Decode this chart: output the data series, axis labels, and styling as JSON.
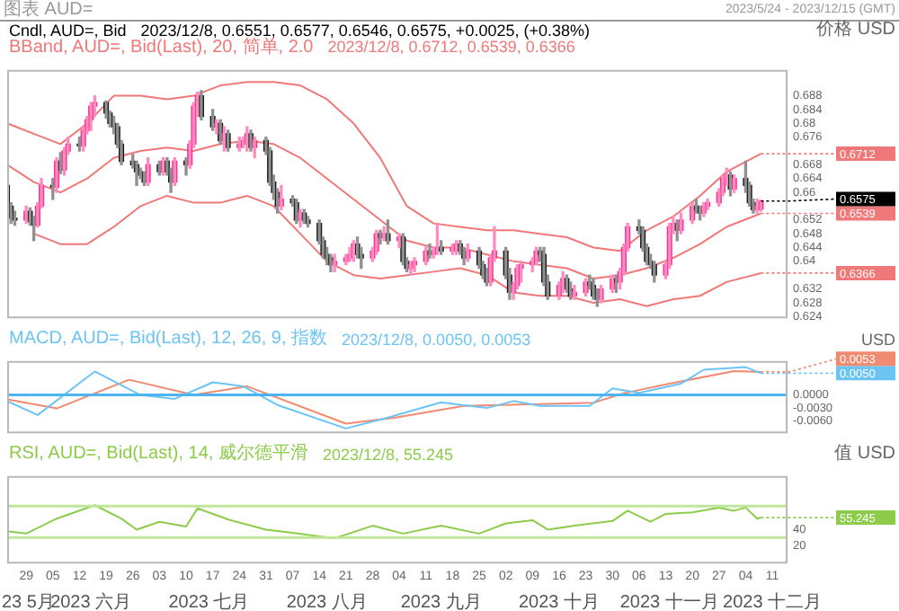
{
  "chart_data": [
    {
      "type": "candlestick",
      "title": "Cndl, AUD=, Bid",
      "subtitle": "2023/12/8, 0.6551, 0.6577, 0.6546, 0.6575, +0.0025, (+0.38%)",
      "ylabel": "价格 USD",
      "x": [
        "2023-05-24",
        "2023-05-25",
        "2023-05-26",
        "2023-05-29",
        "2023-05-30",
        "2023-05-31",
        "2023-06-01",
        "2023-06-02",
        "2023-06-05",
        "2023-06-06",
        "2023-06-07",
        "2023-06-08",
        "2023-06-09",
        "2023-06-12",
        "2023-06-13",
        "2023-06-14",
        "2023-06-15",
        "2023-06-16",
        "2023-06-19",
        "2023-06-20",
        "2023-06-21",
        "2023-06-22",
        "2023-06-23",
        "2023-06-26",
        "2023-06-27",
        "2023-06-28",
        "2023-06-29",
        "2023-06-30",
        "2023-07-03",
        "2023-07-04",
        "2023-07-05",
        "2023-07-06",
        "2023-07-07",
        "2023-07-10",
        "2023-07-11",
        "2023-07-12",
        "2023-07-13",
        "2023-07-14",
        "2023-07-17",
        "2023-07-18",
        "2023-07-19",
        "2023-07-20",
        "2023-07-21",
        "2023-07-24",
        "2023-07-25",
        "2023-07-26",
        "2023-07-27",
        "2023-07-28",
        "2023-07-31",
        "2023-08-01",
        "2023-08-02",
        "2023-08-03",
        "2023-08-04",
        "2023-08-07",
        "2023-08-08",
        "2023-08-09",
        "2023-08-10",
        "2023-08-11",
        "2023-08-14",
        "2023-08-15",
        "2023-08-16",
        "2023-08-17",
        "2023-08-18",
        "2023-08-21",
        "2023-08-22",
        "2023-08-23",
        "2023-08-24",
        "2023-08-25",
        "2023-08-28",
        "2023-08-29",
        "2023-08-30",
        "2023-08-31",
        "2023-09-01",
        "2023-09-04",
        "2023-09-05",
        "2023-09-06",
        "2023-09-07",
        "2023-09-08",
        "2023-09-11",
        "2023-09-12",
        "2023-09-13",
        "2023-09-14",
        "2023-09-15",
        "2023-09-18",
        "2023-09-19",
        "2023-09-20",
        "2023-09-21",
        "2023-09-22",
        "2023-09-25",
        "2023-09-26",
        "2023-09-27",
        "2023-09-28",
        "2023-09-29",
        "2023-10-02",
        "2023-10-03",
        "2023-10-04",
        "2023-10-05",
        "2023-10-06",
        "2023-10-09",
        "2023-10-10",
        "2023-10-11",
        "2023-10-12",
        "2023-10-13",
        "2023-10-16",
        "2023-10-17",
        "2023-10-18",
        "2023-10-19",
        "2023-10-20",
        "2023-10-23",
        "2023-10-24",
        "2023-10-25",
        "2023-10-26",
        "2023-10-27",
        "2023-10-30",
        "2023-10-31",
        "2023-11-01",
        "2023-11-02",
        "2023-11-03",
        "2023-11-06",
        "2023-11-07",
        "2023-11-08",
        "2023-11-09",
        "2023-11-10",
        "2023-11-13",
        "2023-11-14",
        "2023-11-15",
        "2023-11-16",
        "2023-11-17",
        "2023-11-20",
        "2023-11-21",
        "2023-11-22",
        "2023-11-23",
        "2023-11-24",
        "2023-11-27",
        "2023-11-28",
        "2023-11-29",
        "2023-11-30",
        "2023-12-01",
        "2023-12-04",
        "2023-12-05",
        "2023-12-06",
        "2023-12-07",
        "2023-12-08"
      ],
      "ohlc": [
        [
          0.662,
          0.6625,
          0.6555,
          0.656
        ],
        [
          0.656,
          0.657,
          0.651,
          0.6525
        ],
        [
          0.6525,
          0.6545,
          0.6505,
          0.652
        ],
        [
          0.652,
          0.656,
          0.651,
          0.6545
        ],
        [
          0.6545,
          0.6555,
          0.6505,
          0.6515
        ],
        [
          0.6515,
          0.653,
          0.646,
          0.6505
        ],
        [
          0.6505,
          0.657,
          0.65,
          0.656
        ],
        [
          0.656,
          0.664,
          0.6555,
          0.662
        ],
        [
          0.662,
          0.664,
          0.658,
          0.6615
        ],
        [
          0.6615,
          0.67,
          0.66,
          0.669
        ],
        [
          0.669,
          0.6715,
          0.6655,
          0.6665
        ],
        [
          0.6665,
          0.673,
          0.665,
          0.672
        ],
        [
          0.672,
          0.676,
          0.671,
          0.674
        ],
        [
          0.674,
          0.676,
          0.672,
          0.6735
        ],
        [
          0.6735,
          0.679,
          0.672,
          0.678
        ],
        [
          0.678,
          0.682,
          0.677,
          0.681
        ],
        [
          0.681,
          0.686,
          0.678,
          0.685
        ],
        [
          0.685,
          0.688,
          0.682,
          0.686
        ],
        [
          0.686,
          0.6865,
          0.6815,
          0.683
        ],
        [
          0.683,
          0.6835,
          0.679,
          0.68
        ],
        [
          0.68,
          0.682,
          0.677,
          0.679
        ],
        [
          0.679,
          0.68,
          0.673,
          0.674
        ],
        [
          0.674,
          0.675,
          0.668,
          0.669
        ],
        [
          0.669,
          0.671,
          0.667,
          0.668
        ],
        [
          0.668,
          0.669,
          0.662,
          0.666
        ],
        [
          0.666,
          0.667,
          0.664,
          0.665
        ],
        [
          0.665,
          0.666,
          0.662,
          0.663
        ],
        [
          0.663,
          0.67,
          0.662,
          0.668
        ],
        [
          0.668,
          0.669,
          0.665,
          0.666
        ],
        [
          0.666,
          0.67,
          0.665,
          0.669
        ],
        [
          0.669,
          0.67,
          0.665,
          0.666
        ],
        [
          0.666,
          0.667,
          0.66,
          0.663
        ],
        [
          0.663,
          0.67,
          0.662,
          0.669
        ],
        [
          0.669,
          0.67,
          0.665,
          0.668
        ],
        [
          0.668,
          0.675,
          0.667,
          0.674
        ],
        [
          0.674,
          0.686,
          0.673,
          0.685
        ],
        [
          0.685,
          0.689,
          0.682,
          0.688
        ],
        [
          0.688,
          0.6895,
          0.681,
          0.682
        ],
        [
          0.682,
          0.684,
          0.678,
          0.679
        ],
        [
          0.679,
          0.681,
          0.677,
          0.68
        ],
        [
          0.68,
          0.681,
          0.674,
          0.675
        ],
        [
          0.675,
          0.679,
          0.672,
          0.677
        ],
        [
          0.677,
          0.678,
          0.672,
          0.673
        ],
        [
          0.673,
          0.676,
          0.672,
          0.674
        ],
        [
          0.674,
          0.676,
          0.673,
          0.675
        ],
        [
          0.675,
          0.679,
          0.672,
          0.677
        ],
        [
          0.677,
          0.678,
          0.672,
          0.673
        ],
        [
          0.673,
          0.676,
          0.67,
          0.675
        ],
        [
          0.675,
          0.676,
          0.671,
          0.672
        ],
        [
          0.672,
          0.673,
          0.662,
          0.663
        ],
        [
          0.663,
          0.665,
          0.658,
          0.66
        ],
        [
          0.66,
          0.661,
          0.654,
          0.656
        ],
        [
          0.656,
          0.662,
          0.655,
          0.658
        ],
        [
          0.658,
          0.659,
          0.656,
          0.657
        ],
        [
          0.657,
          0.658,
          0.651,
          0.652
        ],
        [
          0.652,
          0.655,
          0.65,
          0.654
        ],
        [
          0.654,
          0.655,
          0.651,
          0.652
        ],
        [
          0.652,
          0.653,
          0.65,
          0.651
        ],
        [
          0.651,
          0.652,
          0.645,
          0.646
        ],
        [
          0.646,
          0.647,
          0.641,
          0.642
        ],
        [
          0.642,
          0.644,
          0.639,
          0.641
        ],
        [
          0.641,
          0.642,
          0.637,
          0.639
        ],
        [
          0.639,
          0.642,
          0.637,
          0.64
        ],
        [
          0.64,
          0.642,
          0.639,
          0.641
        ],
        [
          0.641,
          0.644,
          0.64,
          0.642
        ],
        [
          0.642,
          0.646,
          0.64,
          0.645
        ],
        [
          0.645,
          0.647,
          0.641,
          0.642
        ],
        [
          0.642,
          0.644,
          0.638,
          0.641
        ],
        [
          0.641,
          0.644,
          0.64,
          0.643
        ],
        [
          0.643,
          0.649,
          0.642,
          0.648
        ],
        [
          0.648,
          0.649,
          0.645,
          0.647
        ],
        [
          0.647,
          0.65,
          0.646,
          0.648
        ],
        [
          0.648,
          0.652,
          0.645,
          0.646
        ],
        [
          0.646,
          0.648,
          0.644,
          0.647
        ],
        [
          0.647,
          0.648,
          0.639,
          0.64
        ],
        [
          0.64,
          0.641,
          0.637,
          0.638
        ],
        [
          0.638,
          0.64,
          0.636,
          0.639
        ],
        [
          0.639,
          0.641,
          0.637,
          0.64
        ],
        [
          0.64,
          0.644,
          0.639,
          0.643
        ],
        [
          0.643,
          0.645,
          0.641,
          0.642
        ],
        [
          0.642,
          0.644,
          0.641,
          0.643
        ],
        [
          0.643,
          0.651,
          0.642,
          0.644
        ],
        [
          0.644,
          0.646,
          0.642,
          0.643
        ],
        [
          0.643,
          0.645,
          0.642,
          0.644
        ],
        [
          0.644,
          0.646,
          0.642,
          0.645
        ],
        [
          0.645,
          0.646,
          0.642,
          0.643
        ],
        [
          0.643,
          0.644,
          0.639,
          0.641
        ],
        [
          0.641,
          0.645,
          0.64,
          0.643
        ],
        [
          0.643,
          0.644,
          0.638,
          0.639
        ],
        [
          0.639,
          0.64,
          0.635,
          0.636
        ],
        [
          0.636,
          0.638,
          0.633,
          0.634
        ],
        [
          0.634,
          0.642,
          0.633,
          0.641
        ],
        [
          0.641,
          0.65,
          0.64,
          0.643
        ],
        [
          0.643,
          0.644,
          0.635,
          0.636
        ],
        [
          0.636,
          0.638,
          0.629,
          0.631
        ],
        [
          0.631,
          0.634,
          0.629,
          0.633
        ],
        [
          0.633,
          0.639,
          0.632,
          0.638
        ],
        [
          0.638,
          0.64,
          0.634,
          0.639
        ],
        [
          0.639,
          0.641,
          0.637,
          0.64
        ],
        [
          0.64,
          0.644,
          0.639,
          0.643
        ],
        [
          0.643,
          0.644,
          0.64,
          0.642
        ],
        [
          0.642,
          0.644,
          0.633,
          0.634
        ],
        [
          0.634,
          0.636,
          0.629,
          0.63
        ],
        [
          0.63,
          0.634,
          0.629,
          0.633
        ],
        [
          0.633,
          0.637,
          0.631,
          0.635
        ],
        [
          0.635,
          0.636,
          0.631,
          0.632
        ],
        [
          0.632,
          0.634,
          0.629,
          0.63
        ],
        [
          0.63,
          0.633,
          0.629,
          0.631
        ],
        [
          0.631,
          0.635,
          0.63,
          0.634
        ],
        [
          0.634,
          0.636,
          0.632,
          0.633
        ],
        [
          0.633,
          0.635,
          0.629,
          0.63
        ],
        [
          0.63,
          0.632,
          0.627,
          0.629
        ],
        [
          0.629,
          0.633,
          0.628,
          0.632
        ],
        [
          0.632,
          0.636,
          0.631,
          0.635
        ],
        [
          0.635,
          0.636,
          0.631,
          0.634
        ],
        [
          0.634,
          0.638,
          0.632,
          0.637
        ],
        [
          0.637,
          0.645,
          0.636,
          0.644
        ],
        [
          0.644,
          0.651,
          0.643,
          0.65
        ],
        [
          0.65,
          0.652,
          0.648,
          0.649
        ],
        [
          0.649,
          0.65,
          0.643,
          0.644
        ],
        [
          0.644,
          0.645,
          0.639,
          0.64
        ],
        [
          0.64,
          0.642,
          0.638,
          0.639
        ],
        [
          0.639,
          0.64,
          0.634,
          0.636
        ],
        [
          0.636,
          0.64,
          0.635,
          0.639
        ],
        [
          0.639,
          0.651,
          0.638,
          0.65
        ],
        [
          0.65,
          0.653,
          0.648,
          0.651
        ],
        [
          0.651,
          0.652,
          0.646,
          0.649
        ],
        [
          0.649,
          0.654,
          0.648,
          0.652
        ],
        [
          0.652,
          0.657,
          0.651,
          0.656
        ],
        [
          0.656,
          0.658,
          0.654,
          0.655
        ],
        [
          0.655,
          0.656,
          0.652,
          0.654
        ],
        [
          0.654,
          0.657,
          0.653,
          0.656
        ],
        [
          0.656,
          0.658,
          0.655,
          0.657
        ],
        [
          0.657,
          0.661,
          0.656,
          0.66
        ],
        [
          0.66,
          0.665,
          0.659,
          0.664
        ],
        [
          0.664,
          0.667,
          0.662,
          0.665
        ],
        [
          0.665,
          0.666,
          0.659,
          0.661
        ],
        [
          0.661,
          0.665,
          0.66,
          0.664
        ],
        [
          0.664,
          0.669,
          0.66,
          0.662
        ],
        [
          0.662,
          0.663,
          0.656,
          0.657
        ],
        [
          0.657,
          0.658,
          0.654,
          0.655
        ],
        [
          0.655,
          0.658,
          0.654,
          0.656
        ],
        [
          0.6551,
          0.6577,
          0.6546,
          0.6575
        ]
      ],
      "series": [
        {
          "type": "line",
          "name": "BBand, AUD=, Bid(Last), 20, 简单, 2.0",
          "color": "#f07878",
          "x": [
            "2023-05-24",
            "2023-05-31",
            "2023-06-07",
            "2023-06-14",
            "2023-06-21",
            "2023-06-28",
            "2023-07-05",
            "2023-07-12",
            "2023-07-19",
            "2023-07-26",
            "2023-08-02",
            "2023-08-09",
            "2023-08-16",
            "2023-08-23",
            "2023-08-30",
            "2023-09-06",
            "2023-09-13",
            "2023-09-20",
            "2023-09-27",
            "2023-10-04",
            "2023-10-11",
            "2023-10-18",
            "2023-10-25",
            "2023-11-01",
            "2023-11-08",
            "2023-11-15",
            "2023-11-22",
            "2023-11-29",
            "2023-12-08"
          ],
          "values": [
            0.68,
            0.677,
            0.674,
            0.68,
            0.688,
            0.688,
            0.687,
            0.688,
            0.691,
            0.692,
            0.692,
            0.691,
            0.687,
            0.68,
            0.67,
            0.656,
            0.651,
            0.65,
            0.649,
            0.649,
            0.648,
            0.647,
            0.644,
            0.643,
            0.649,
            0.653,
            0.659,
            0.666,
            0.6712
          ]
        },
        {
          "type": "line",
          "color": "#f07878",
          "x": [
            "2023-05-24",
            "2023-05-31",
            "2023-06-07",
            "2023-06-14",
            "2023-06-21",
            "2023-06-28",
            "2023-07-05",
            "2023-07-12",
            "2023-07-19",
            "2023-07-26",
            "2023-08-02",
            "2023-08-09",
            "2023-08-16",
            "2023-08-23",
            "2023-08-30",
            "2023-09-06",
            "2023-09-13",
            "2023-09-20",
            "2023-09-27",
            "2023-10-04",
            "2023-10-11",
            "2023-10-18",
            "2023-10-25",
            "2023-11-01",
            "2023-11-08",
            "2023-11-15",
            "2023-11-22",
            "2023-11-29",
            "2023-12-08"
          ],
          "values": [
            0.668,
            0.663,
            0.66,
            0.664,
            0.67,
            0.672,
            0.673,
            0.672,
            0.674,
            0.675,
            0.674,
            0.67,
            0.664,
            0.658,
            0.652,
            0.646,
            0.644,
            0.644,
            0.642,
            0.64,
            0.639,
            0.638,
            0.635,
            0.636,
            0.638,
            0.641,
            0.645,
            0.65,
            0.6539
          ]
        },
        {
          "type": "line",
          "color": "#f07878",
          "x": [
            "2023-05-31",
            "2023-06-07",
            "2023-06-14",
            "2023-06-21",
            "2023-06-28",
            "2023-07-05",
            "2023-07-12",
            "2023-07-19",
            "2023-07-26",
            "2023-08-02",
            "2023-08-09",
            "2023-08-16",
            "2023-08-23",
            "2023-08-30",
            "2023-09-06",
            "2023-09-13",
            "2023-09-20",
            "2023-09-27",
            "2023-10-04",
            "2023-10-11",
            "2023-10-18",
            "2023-10-25",
            "2023-11-01",
            "2023-11-08",
            "2023-11-15",
            "2023-11-22",
            "2023-11-29",
            "2023-12-08"
          ],
          "values": [
            0.648,
            0.645,
            0.645,
            0.65,
            0.656,
            0.659,
            0.657,
            0.657,
            0.659,
            0.656,
            0.648,
            0.64,
            0.636,
            0.635,
            0.636,
            0.637,
            0.638,
            0.636,
            0.631,
            0.63,
            0.63,
            0.628,
            0.629,
            0.627,
            0.629,
            0.63,
            0.634,
            0.6366
          ]
        }
      ],
      "xlim": [
        "2023-05-24",
        "2023-12-15"
      ],
      "ylim": [
        0.6235,
        0.6955
      ],
      "yticks": [
        0.624,
        0.628,
        0.632,
        0.64,
        0.644,
        0.648,
        0.652,
        0.66,
        0.664,
        0.668,
        0.676,
        0.68,
        0.684,
        0.688
      ],
      "tick_labels": "y",
      "annotations": [
        "图表 AUD=",
        "2023/5/24 - 2023/12/15 (GMT)",
        "2023/12/8, 0.6712, 0.6539, 0.6366",
        {
          "text": "0.6712",
          "x": "2023-12-08",
          "y": 0.6712
        },
        {
          "text": "0.6575",
          "x": "2023-12-08",
          "y": 0.6575
        },
        {
          "text": "0.6539",
          "x": "2023-12-08",
          "y": 0.6539
        },
        {
          "text": "0.6366",
          "x": "2023-12-08",
          "y": 0.6366
        }
      ]
    },
    {
      "type": "line",
      "title": "MACD, AUD=, Bid(Last), 12, 26, 9, 指数",
      "subtitle": "2023/12/8, 0.0050, 0.0053",
      "ylabel": "USD",
      "series": [
        {
          "color": "#6cc4f5",
          "x": [
            "2023-05-24",
            "2023-06-01",
            "2023-06-16",
            "2023-06-28",
            "2023-07-07",
            "2023-07-17",
            "2023-07-25",
            "2023-08-03",
            "2023-08-21",
            "2023-09-01",
            "2023-09-15",
            "2023-09-27",
            "2023-10-04",
            "2023-10-11",
            "2023-10-24",
            "2023-10-30",
            "2023-11-06",
            "2023-11-17",
            "2023-11-23",
            "2023-12-04",
            "2023-12-08"
          ],
          "values": [
            -0.0014,
            -0.0046,
            0.0054,
            0.0,
            -0.0009,
            0.0029,
            0.002,
            -0.0023,
            -0.0077,
            -0.0052,
            -0.0017,
            -0.003,
            -0.0014,
            -0.0025,
            -0.0025,
            0.0015,
            0.0005,
            0.0026,
            0.0058,
            0.0064,
            0.005
          ]
        },
        {
          "color": "#f08a70",
          "x": [
            "2023-05-24",
            "2023-06-06",
            "2023-06-25",
            "2023-07-12",
            "2023-07-26",
            "2023-08-21",
            "2023-09-03",
            "2023-09-21",
            "2023-10-25",
            "2023-11-02",
            "2023-11-14",
            "2023-12-01",
            "2023-12-08"
          ],
          "values": [
            -0.001,
            -0.0031,
            0.0035,
            0.0,
            0.002,
            -0.0066,
            -0.0052,
            -0.0025,
            -0.0018,
            0.0004,
            0.0026,
            0.0055,
            0.0053
          ]
        }
      ],
      "xlim": [
        "2023-05-24",
        "2023-12-15"
      ],
      "ylim": [
        -0.0088,
        0.0078
      ],
      "yticks": [
        {
          "value": 0,
          "label": "0.0000"
        },
        {
          "value": -0.003,
          "label": "-0.0030"
        },
        {
          "value": -0.006,
          "label": "-0.0060"
        }
      ],
      "tick_labels": "y",
      "ref_lines": [
        {
          "axis": "y",
          "value": 0,
          "color": "#4fb3f0"
        }
      ],
      "annotations": [
        {
          "text": "0.0053",
          "x": "2023-12-08",
          "y": 0.0053
        },
        {
          "text": "0.0050",
          "x": "2023-12-08",
          "y": 0.005
        }
      ]
    },
    {
      "type": "line",
      "title": "RSI, AUD=, Bid(Last), 14, 威尔德平滑",
      "subtitle": "2023/12/8, 55.245",
      "ylabel": "值 USD",
      "series": [
        {
          "color": "#8ccc4a",
          "x": [
            "2023-05-24",
            "2023-05-29",
            "2023-06-06",
            "2023-06-16",
            "2023-06-23",
            "2023-06-27",
            "2023-07-03",
            "2023-07-10",
            "2023-07-13",
            "2023-07-21",
            "2023-07-31",
            "2023-08-07",
            "2023-08-18",
            "2023-08-28",
            "2023-09-05",
            "2023-09-15",
            "2023-09-25",
            "2023-10-02",
            "2023-10-09",
            "2023-10-13",
            "2023-10-20",
            "2023-10-30",
            "2023-11-03",
            "2023-11-09",
            "2023-11-13",
            "2023-11-20",
            "2023-11-27",
            "2023-12-01",
            "2023-12-04",
            "2023-12-07",
            "2023-12-08"
          ],
          "values": [
            38,
            35,
            54,
            71,
            54,
            40,
            50,
            44,
            67,
            53,
            40,
            36,
            29,
            45,
            35,
            45,
            35,
            48,
            52,
            40,
            45,
            51,
            64,
            50,
            60,
            62,
            68,
            64,
            68,
            54,
            55.245
          ]
        }
      ],
      "xlim": [
        "2023-05-24",
        "2023-12-15"
      ],
      "ylim": [
        -3,
        108
      ],
      "yticks": [
        20,
        40
      ],
      "xticks": [
        {
          "value": "2023-05-29",
          "label": "29"
        },
        {
          "value": "2023-06-05",
          "label": "05"
        },
        {
          "value": "2023-06-12",
          "label": "12"
        },
        {
          "value": "2023-06-19",
          "label": "19"
        },
        {
          "value": "2023-06-26",
          "label": "26"
        },
        {
          "value": "2023-07-03",
          "label": "03"
        },
        {
          "value": "2023-07-10",
          "label": "10"
        },
        {
          "value": "2023-07-17",
          "label": "17"
        },
        {
          "value": "2023-07-24",
          "label": "24"
        },
        {
          "value": "2023-07-31",
          "label": "31"
        },
        {
          "value": "2023-08-07",
          "label": "07"
        },
        {
          "value": "2023-08-14",
          "label": "14"
        },
        {
          "value": "2023-08-21",
          "label": "21"
        },
        {
          "value": "2023-08-28",
          "label": "28"
        },
        {
          "value": "2023-09-04",
          "label": "04"
        },
        {
          "value": "2023-09-11",
          "label": "11"
        },
        {
          "value": "2023-09-18",
          "label": "18"
        },
        {
          "value": "2023-09-25",
          "label": "25"
        },
        {
          "value": "2023-10-02",
          "label": "02"
        },
        {
          "value": "2023-10-09",
          "label": "09"
        },
        {
          "value": "2023-10-16",
          "label": "16"
        },
        {
          "value": "2023-10-23",
          "label": "23"
        },
        {
          "value": "2023-10-30",
          "label": "30"
        },
        {
          "value": "2023-11-06",
          "label": "06"
        },
        {
          "value": "2023-11-13",
          "label": "13"
        },
        {
          "value": "2023-11-20",
          "label": "20"
        },
        {
          "value": "2023-11-27",
          "label": "27"
        },
        {
          "value": "2023-12-04",
          "label": "04"
        },
        {
          "value": "2023-12-11",
          "label": "11"
        }
      ],
      "ref_lines": [
        {
          "axis": "y",
          "value": 70,
          "color": "#bfe69a"
        },
        {
          "axis": "y",
          "value": 30,
          "color": "#bfe69a"
        }
      ],
      "x2lim": [
        "2023-05-24",
        "2023-12-15"
      ],
      "x2ticks": [
        {
          "value": "2023-05-29",
          "label": "23 5月"
        },
        {
          "value": "2023-06-15",
          "label": "2023 六月"
        },
        {
          "value": "2023-07-16",
          "label": "2023 七月"
        },
        {
          "value": "2023-08-16",
          "label": "2023 八月"
        },
        {
          "value": "2023-09-15",
          "label": "2023 九月"
        },
        {
          "value": "2023-10-16",
          "label": "2023 十月"
        },
        {
          "value": "2023-11-14",
          "label": "2023 十一月"
        },
        {
          "value": "2023-12-11",
          "label": "2023 十二月"
        }
      ],
      "annotations": [
        {
          "text": "55.245",
          "x": "2023-12-08",
          "y": 55.245
        }
      ]
    }
  ]
}
